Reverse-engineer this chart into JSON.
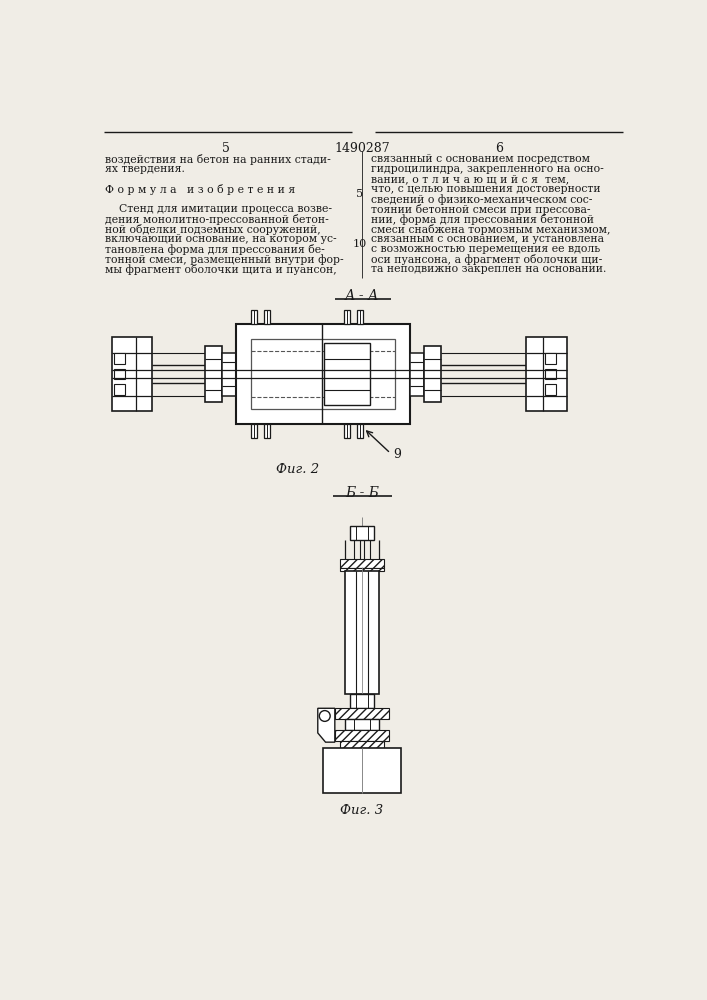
{
  "bg_color": "#f0ede6",
  "line_color": "#1a1a1a",
  "text_color": "#1a1a1a",
  "page_number_left": "5",
  "page_number_center": "1490287",
  "page_number_right": "6",
  "text_left_col": [
    "воздействия на бетон на ранних стади-",
    "ях твердения.",
    "",
    "Ф о р м у л а   и з о б р е т е н и я",
    "",
    "    Стенд для имитации процесса возве-",
    "дения монолитно-прессованной бетон-",
    "ной обделки подземных сооружений,",
    "включающий основание, на котором ус-",
    "тановлена форма для прессования бе-",
    "тонной смеси, размещенный внутри фор-",
    "мы фрагмент оболочки щита и пуансон,"
  ],
  "text_right_col": [
    "связанный с основанием посредством",
    "гидроцилиндра, закрепленного на осно-",
    "вании, о т л и ч а ю щ и й с я  тем,",
    "что, с целью повышения достоверности",
    "сведений о физико-механическом сос-",
    "тоянии бетонной смеси при прессова-",
    "нии, форма для прессования бетонной",
    "смеси снабжена тормозным механизмом,",
    "связанным с основанием, и установлена",
    "с возможностью перемещения ее вдоль",
    "оси пуансона, а фрагмент оболочки щи-",
    "та неподвижно закреплен на основании."
  ],
  "section_label_fig2": "А - А",
  "section_label_fig3": "Б - Б",
  "fig2_caption": "Фиг. 2",
  "fig3_caption": "Фиг. 3",
  "label_9": "9"
}
